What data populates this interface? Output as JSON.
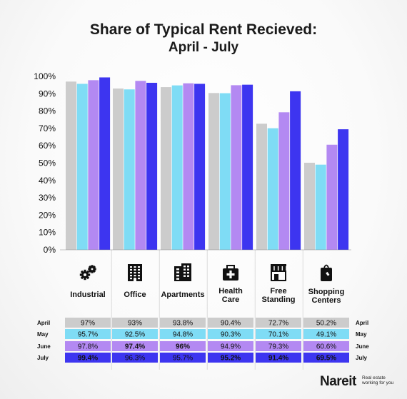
{
  "title_line1": "Share of Typical Rent Recieved:",
  "title_line2": "April - July",
  "brand": {
    "name": "Nareit",
    "tagline": "Real estate working for you"
  },
  "chart_data": {
    "type": "bar",
    "title": "Share of Typical Rent Recieved: April - July",
    "categories": [
      "Industrial",
      "Office",
      "Apartments",
      "Health Care",
      "Free Standing",
      "Shopping Centers"
    ],
    "category_lines": [
      [
        "Industrial"
      ],
      [
        "Office"
      ],
      [
        "Apartments"
      ],
      [
        "Health",
        "Care"
      ],
      [
        "Free",
        "Standing"
      ],
      [
        "Shopping",
        "Centers"
      ]
    ],
    "category_icons": [
      "gears-icon",
      "office-building-icon",
      "apartments-icon",
      "health-care-icon",
      "storefront-icon",
      "shopping-bag-icon"
    ],
    "yticks": [
      "0%",
      "10%",
      "20%",
      "30%",
      "40%",
      "50%",
      "60%",
      "70%",
      "80%",
      "90%",
      "100%"
    ],
    "ylim": [
      0,
      100
    ],
    "legend_position": "table-below",
    "series": [
      {
        "name": "April",
        "color": "#cccccc",
        "values": [
          97,
          93,
          93.8,
          90.4,
          72.7,
          50.2
        ],
        "labels": [
          "97%",
          "93%",
          "93.8%",
          "90.4%",
          "72.7%",
          "50.2%"
        ],
        "bold": [
          false,
          false,
          false,
          false,
          false,
          false
        ]
      },
      {
        "name": "May",
        "color": "#7fdcf5",
        "values": [
          95.7,
          92.5,
          94.8,
          90.3,
          70.1,
          49.1
        ],
        "labels": [
          "95.7%",
          "92.5%",
          "94.8%",
          "90.3%",
          "70.1%",
          "49.1%"
        ],
        "bold": [
          false,
          false,
          false,
          false,
          false,
          false
        ]
      },
      {
        "name": "June",
        "color": "#b389f2",
        "values": [
          97.8,
          97.4,
          96,
          94.9,
          79.3,
          60.6
        ],
        "labels": [
          "97.8%",
          "97.4%",
          "96%",
          "94.9%",
          "79.3%",
          "60.6%"
        ],
        "bold": [
          false,
          true,
          true,
          false,
          false,
          false
        ]
      },
      {
        "name": "July",
        "color": "#3d35f0",
        "values": [
          99.4,
          96.3,
          95.7,
          95.2,
          91.4,
          69.5
        ],
        "labels": [
          "99.4%",
          "96.3%",
          "95.7%",
          "95.2%",
          "91.4%",
          "69.5%"
        ],
        "bold": [
          true,
          false,
          false,
          true,
          true,
          true
        ]
      }
    ]
  }
}
